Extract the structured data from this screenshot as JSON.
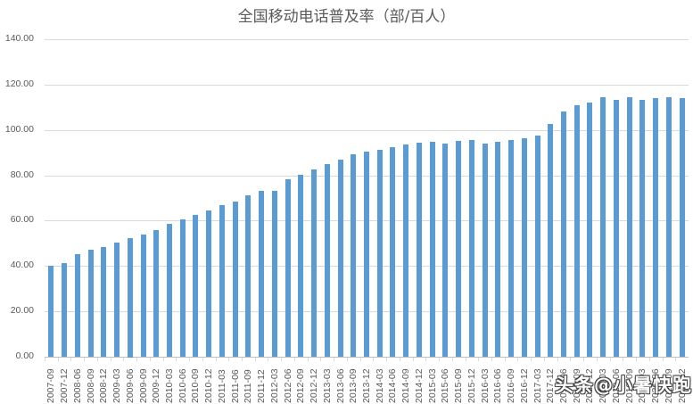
{
  "chart_data": {
    "type": "bar",
    "title": "全国移动电话普及率（部/百人）",
    "xlabel": "",
    "ylabel": "",
    "ylim": [
      0,
      140
    ],
    "yticks": [
      "0.00",
      "20.00",
      "40.00",
      "60.00",
      "80.00",
      "100.00",
      "120.00",
      "140.00"
    ],
    "grid": true,
    "legend": null,
    "bar_color": "#5b9bd5",
    "categories": [
      "2007-09",
      "2007-12",
      "2008-06",
      "2008-09",
      "2008-12",
      "2009-03",
      "2009-06",
      "2009-09",
      "2009-12",
      "2010-03",
      "2010-06",
      "2010-09",
      "2010-12",
      "2011-03",
      "2011-06",
      "2011-09",
      "2011-12",
      "2012-03",
      "2012-06",
      "2012-09",
      "2012-12",
      "2013-03",
      "2013-06",
      "2013-09",
      "2013-12",
      "2014-03",
      "2014-06",
      "2014-09",
      "2014-12",
      "2015-03",
      "2015-06",
      "2015-09",
      "2015-12",
      "2016-03",
      "2016-06",
      "2016-09",
      "2016-12",
      "2017-03",
      "2017-12",
      "2018-06",
      "2018-09",
      "2018-12",
      "2019-03",
      "2019-06",
      "2019-09",
      "2020-03",
      "2020-06",
      "2020-09",
      "2020-12"
    ],
    "values": [
      40.0,
      41.2,
      45.3,
      47.2,
      48.5,
      50.5,
      52.5,
      54.0,
      55.8,
      58.5,
      60.5,
      62.4,
      64.4,
      66.7,
      68.6,
      71.0,
      73.3,
      73.3,
      78.1,
      80.4,
      82.5,
      84.8,
      87.1,
      89.1,
      90.6,
      91.4,
      92.5,
      93.7,
      94.2,
      94.6,
      94.1,
      95.0,
      95.5,
      93.8,
      94.6,
      95.6,
      96.2,
      97.7,
      102.5,
      108.3,
      111.0,
      112.0,
      114.3,
      113.4,
      114.3,
      113.4,
      113.9,
      114.3,
      113.9
    ]
  },
  "watermark": "头条@小暑快跑"
}
